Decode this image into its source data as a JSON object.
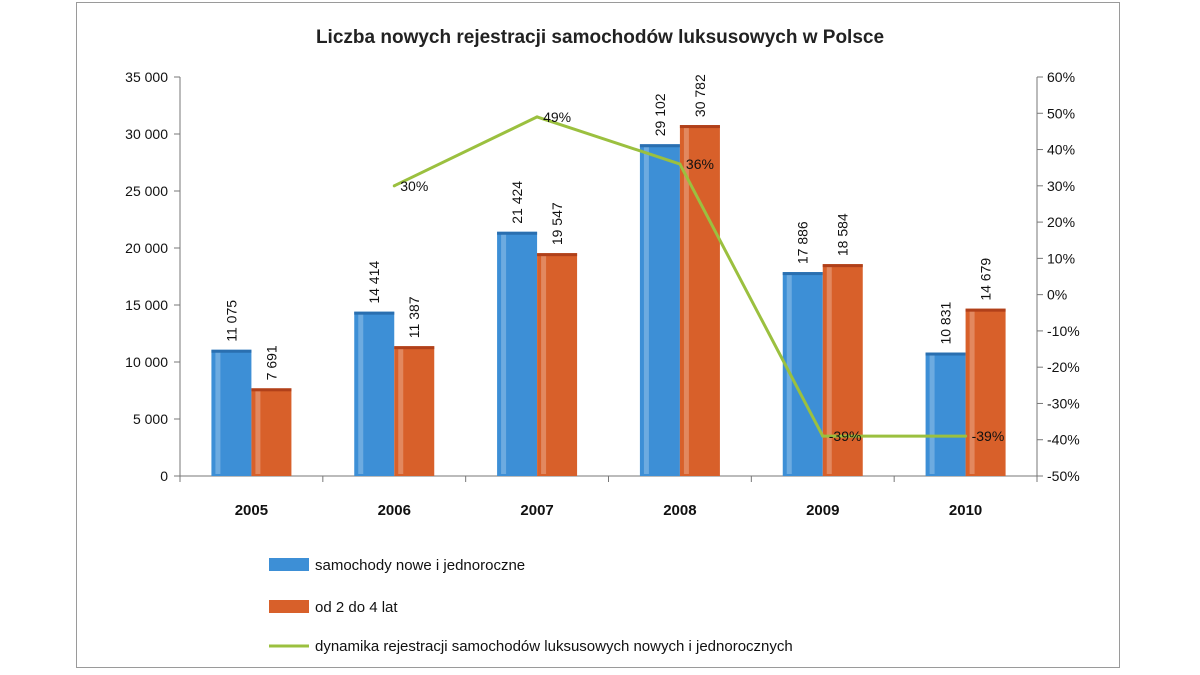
{
  "chart_data": {
    "type": "bar",
    "title": "Liczba nowych rejestracji samochodów luksusowych w Polsce",
    "categories": [
      "2005",
      "2006",
      "2007",
      "2008",
      "2009",
      "2010"
    ],
    "series": [
      {
        "name": "samochody nowe i jednoroczne",
        "type": "bar",
        "axis": "left",
        "color": "#3d8fd6",
        "values": [
          11075,
          14414,
          21424,
          29102,
          17886,
          10831
        ],
        "labels": [
          "11 075",
          "14 414",
          "21 424",
          "29 102",
          "17 886",
          "10 831"
        ]
      },
      {
        "name": "od 2 do 4 lat",
        "type": "bar",
        "axis": "left",
        "color": "#d8602a",
        "values": [
          7691,
          11387,
          19547,
          30782,
          18584,
          14679
        ],
        "labels": [
          "7 691",
          "11 387",
          "19 547",
          "30 782",
          "18 584",
          "14 679"
        ]
      },
      {
        "name": "dynamika rejestracji samochodów luksusowych nowych i jednorocznych",
        "type": "line",
        "axis": "right",
        "color": "#9bc03f",
        "values": [
          null,
          30,
          49,
          36,
          -39,
          -39
        ],
        "labels": [
          "",
          "30%",
          "49%",
          "36%",
          "-39%",
          "-39%"
        ]
      }
    ],
    "y_left": {
      "min": 0,
      "max": 35000,
      "ticks": [
        0,
        5000,
        10000,
        15000,
        20000,
        25000,
        30000,
        35000
      ],
      "tick_labels": [
        "0",
        "5 000",
        "10 000",
        "15 000",
        "20 000",
        "25 000",
        "30 000",
        "35 000"
      ]
    },
    "y_right": {
      "min": -50,
      "max": 60,
      "ticks": [
        -50,
        -40,
        -30,
        -20,
        -10,
        0,
        10,
        20,
        30,
        40,
        50,
        60
      ],
      "tick_labels": [
        "-50%",
        "-40%",
        "-30%",
        "-20%",
        "-10%",
        "0%",
        "10%",
        "20%",
        "30%",
        "40%",
        "50%",
        "60%"
      ]
    },
    "grid": false,
    "legend_position": "bottom"
  }
}
